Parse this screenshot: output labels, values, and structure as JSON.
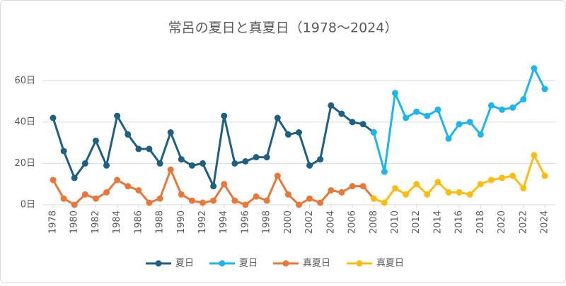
{
  "chart_data": {
    "type": "line",
    "title": "常呂の夏日と真夏日（1978～2024）",
    "x": [
      1978,
      1979,
      1980,
      1981,
      1982,
      1983,
      1984,
      1985,
      1986,
      1987,
      1988,
      1989,
      1990,
      1991,
      1992,
      1993,
      1994,
      1995,
      1996,
      1997,
      1998,
      1999,
      2000,
      2001,
      2002,
      2003,
      2004,
      2005,
      2006,
      2007,
      2008,
      2009,
      2010,
      2011,
      2012,
      2013,
      2014,
      2015,
      2016,
      2017,
      2018,
      2019,
      2020,
      2021,
      2022,
      2023,
      2024
    ],
    "xlim": [
      1978,
      2024
    ],
    "xticks": [
      1978,
      1980,
      1982,
      1984,
      1986,
      1988,
      1990,
      1992,
      1994,
      1996,
      1998,
      2000,
      2002,
      2004,
      2006,
      2008,
      2010,
      2012,
      2014,
      2016,
      2018,
      2020,
      2022,
      2024
    ],
    "ylim": [
      0,
      70
    ],
    "yticks": [
      {
        "value": 0,
        "label": "0日"
      },
      {
        "value": 20,
        "label": "20日"
      },
      {
        "value": 40,
        "label": "40日"
      },
      {
        "value": 60,
        "label": "60日"
      }
    ],
    "grid": true,
    "legend": "bottom",
    "series": [
      {
        "name": "夏日",
        "color": "#1f5f7f",
        "values": [
          42,
          26,
          13,
          20,
          31,
          19,
          43,
          34,
          27,
          27,
          20,
          35,
          22,
          19,
          20,
          9,
          43,
          20,
          21,
          23,
          23,
          42,
          34,
          35,
          19,
          22,
          48,
          44,
          40,
          39,
          35,
          null,
          null,
          null,
          null,
          null,
          null,
          null,
          null,
          null,
          null,
          null,
          null,
          null,
          null,
          null,
          null
        ]
      },
      {
        "name": "夏日",
        "color": "#1eb4ec",
        "values": [
          null,
          null,
          null,
          null,
          null,
          null,
          null,
          null,
          null,
          null,
          null,
          null,
          null,
          null,
          null,
          null,
          null,
          null,
          null,
          null,
          null,
          null,
          null,
          null,
          null,
          null,
          null,
          null,
          null,
          null,
          35,
          16,
          54,
          42,
          45,
          43,
          46,
          32,
          39,
          40,
          34,
          48,
          46,
          47,
          51,
          66,
          56
        ]
      },
      {
        "name": "真夏日",
        "color": "#e8773a",
        "values": [
          12,
          3,
          0,
          5,
          3,
          6,
          12,
          9,
          7,
          1,
          3,
          17,
          5,
          2,
          1,
          2,
          10,
          2,
          0,
          4,
          2,
          14,
          5,
          0,
          3,
          1,
          7,
          6,
          9,
          9,
          3,
          null,
          null,
          null,
          null,
          null,
          null,
          null,
          null,
          null,
          null,
          null,
          null,
          null,
          null,
          null,
          null
        ]
      },
      {
        "name": "真夏日",
        "color": "#fbbd12",
        "values": [
          null,
          null,
          null,
          null,
          null,
          null,
          null,
          null,
          null,
          null,
          null,
          null,
          null,
          null,
          null,
          null,
          null,
          null,
          null,
          null,
          null,
          null,
          null,
          null,
          null,
          null,
          null,
          null,
          null,
          null,
          3,
          1,
          8,
          5,
          10,
          5,
          11,
          6,
          6,
          5,
          10,
          12,
          13,
          14,
          8,
          24,
          14
        ]
      }
    ]
  }
}
